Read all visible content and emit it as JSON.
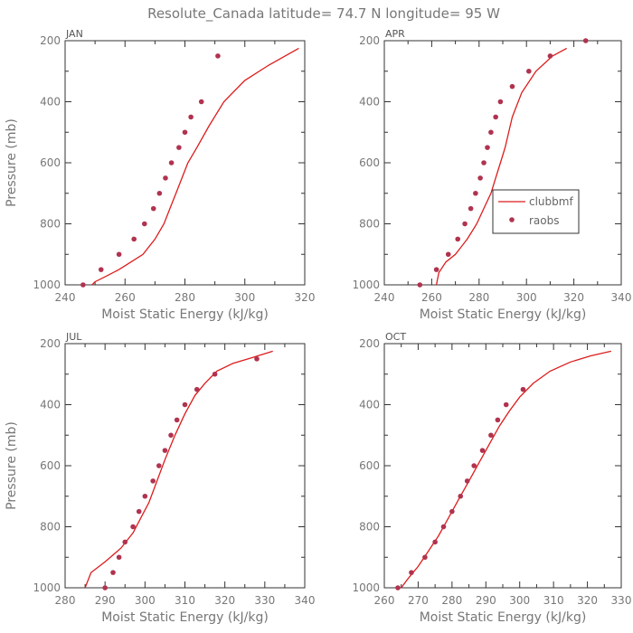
{
  "figure_title": "Resolute_Canada  latitude= 74.7 N longitude= 95 W",
  "colors": {
    "model": "#dd1c1c",
    "obs": "#b0334f",
    "axis": "#333333",
    "text": "#777777"
  },
  "chart_data": [
    {
      "type": "line",
      "title": "JAN",
      "xlabel": "Moist Static Energy (kJ/kg)",
      "ylabel": "Pressure (mb)",
      "xlim": [
        240,
        320
      ],
      "ylim": [
        1000,
        200
      ],
      "xticks": [
        240,
        260,
        280,
        300,
        320
      ],
      "yticks": [
        1000,
        800,
        600,
        400,
        200
      ],
      "series": [
        {
          "name": "clubbmf",
          "style": "line",
          "x": [
            249,
            250,
            254,
            258,
            262,
            266,
            270,
            273,
            275,
            277,
            279,
            281,
            284,
            288,
            293,
            300,
            308,
            318
          ],
          "y": [
            1000,
            990,
            970,
            950,
            925,
            900,
            850,
            800,
            750,
            700,
            650,
            600,
            550,
            480,
            400,
            330,
            280,
            225
          ]
        },
        {
          "name": "raobs",
          "style": "markers",
          "x": [
            246,
            252,
            258,
            263,
            266.5,
            269.5,
            271.5,
            273.5,
            275.5,
            278,
            280,
            282,
            285.5,
            291
          ],
          "y": [
            1000,
            950,
            900,
            850,
            800,
            750,
            700,
            650,
            600,
            550,
            500,
            450,
            400,
            250
          ]
        }
      ]
    },
    {
      "type": "line",
      "title": "APR",
      "xlabel": "Moist Static Energy (kJ/kg)",
      "ylabel": "",
      "xlim": [
        240,
        340
      ],
      "ylim": [
        1000,
        200
      ],
      "xticks": [
        240,
        260,
        280,
        300,
        320,
        340
      ],
      "yticks": [
        1000,
        800,
        600,
        400,
        200
      ],
      "legend": {
        "location": "center-right",
        "entries": [
          "clubbmf",
          "raobs"
        ]
      },
      "series": [
        {
          "name": "clubbmf",
          "style": "line",
          "x": [
            262,
            263,
            266,
            270,
            275,
            279,
            282,
            285,
            287,
            289,
            291,
            294,
            298,
            304,
            311,
            317
          ],
          "y": [
            1000,
            960,
            925,
            900,
            850,
            800,
            750,
            700,
            650,
            600,
            550,
            450,
            370,
            300,
            250,
            225
          ]
        },
        {
          "name": "raobs",
          "style": "markers",
          "x": [
            255,
            262,
            267,
            271,
            274,
            276.5,
            278.5,
            280.5,
            282,
            283.5,
            285,
            287,
            289,
            294,
            301,
            310,
            325
          ],
          "y": [
            1000,
            950,
            900,
            850,
            800,
            750,
            700,
            650,
            600,
            550,
            500,
            450,
            400,
            350,
            300,
            250,
            200
          ]
        }
      ]
    },
    {
      "type": "line",
      "title": "JUL",
      "xlabel": "Moist Static Energy (kJ/kg)",
      "ylabel": "Pressure (mb)",
      "xlim": [
        280,
        340
      ],
      "ylim": [
        1000,
        200
      ],
      "xticks": [
        280,
        290,
        300,
        310,
        320,
        330,
        340
      ],
      "yticks": [
        1000,
        800,
        600,
        400,
        200
      ],
      "series": [
        {
          "name": "clubbmf",
          "style": "line",
          "x": [
            285,
            286.5,
            290,
            294,
            297,
            299,
            301,
            303,
            305,
            307.5,
            310,
            312.5,
            315,
            318,
            322,
            327,
            332
          ],
          "y": [
            1000,
            950,
            915,
            870,
            820,
            770,
            720,
            650,
            580,
            500,
            430,
            370,
            330,
            290,
            265,
            245,
            225
          ]
        },
        {
          "name": "raobs",
          "style": "markers",
          "x": [
            290,
            292,
            293.5,
            295,
            297,
            298.5,
            300,
            302,
            303.5,
            305,
            306.5,
            308,
            310,
            313,
            317.5,
            328
          ],
          "y": [
            1000,
            950,
            900,
            850,
            800,
            750,
            700,
            650,
            600,
            550,
            500,
            450,
            400,
            350,
            300,
            250
          ]
        }
      ]
    },
    {
      "type": "line",
      "title": "OCT",
      "xlabel": "Moist Static Energy (kJ/kg)",
      "ylabel": "",
      "xlim": [
        260,
        330
      ],
      "ylim": [
        1000,
        200
      ],
      "xticks": [
        260,
        270,
        280,
        290,
        300,
        310,
        320,
        330
      ],
      "yticks": [
        1000,
        800,
        600,
        400,
        200
      ],
      "series": [
        {
          "name": "clubbmf",
          "style": "line",
          "x": [
            265,
            267,
            270,
            273,
            276,
            279,
            282,
            285,
            288,
            291,
            294,
            297,
            300,
            304,
            309,
            315,
            321,
            327
          ],
          "y": [
            1000,
            970,
            930,
            880,
            830,
            770,
            710,
            650,
            590,
            530,
            470,
            420,
            375,
            330,
            290,
            260,
            240,
            225
          ]
        },
        {
          "name": "raobs",
          "style": "markers",
          "x": [
            264,
            268,
            272,
            275,
            277.5,
            280,
            282.5,
            284.5,
            286.5,
            289,
            291.5,
            293.5,
            296,
            301
          ],
          "y": [
            1000,
            950,
            900,
            850,
            800,
            750,
            700,
            650,
            600,
            550,
            500,
            450,
            400,
            350
          ]
        }
      ]
    }
  ]
}
